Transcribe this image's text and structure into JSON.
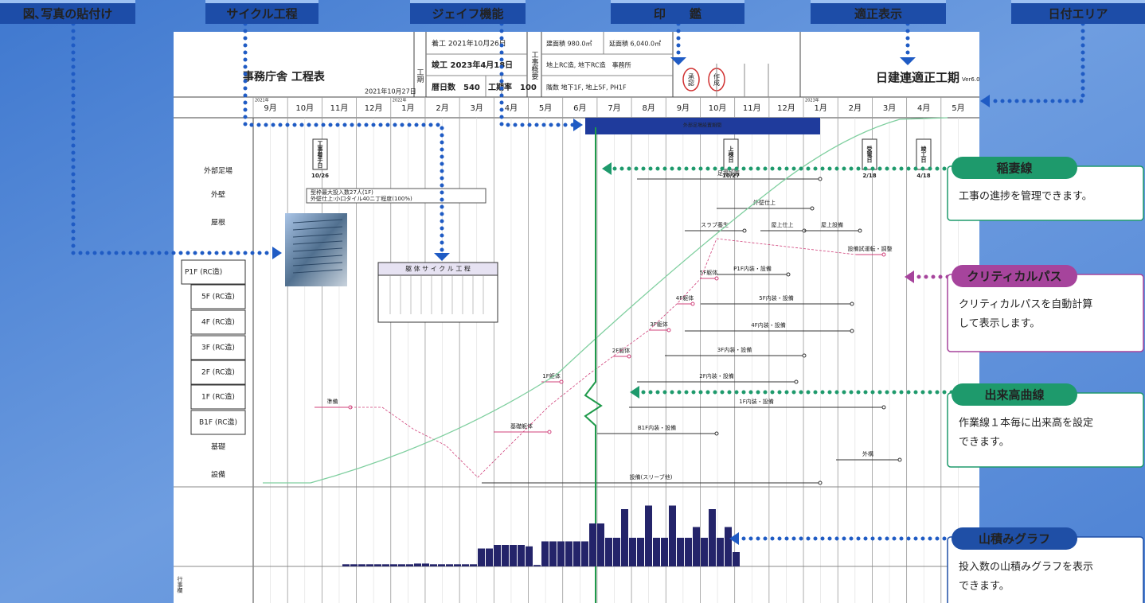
{
  "tabs": [
    "図､写真の貼付け",
    "サイクル工程",
    "ジェイフ機能",
    "印　　鑑",
    "適正表示",
    "日付エリア"
  ],
  "sheet": {
    "title": "事務庁舎 工程表",
    "issue_date": "2021年10月27日",
    "period_label": "工期",
    "start": "着工 2021年10月26日",
    "finish": "竣工 2023年4月18日",
    "days": "暦日数　540",
    "rate": "工期率　100",
    "outline_label": "工事概要",
    "info": [
      "建面積 980.0㎡",
      "延面積 6,040.0㎡",
      "地上RC造, 地下RC造　事務所",
      "階数 地下1F, 地上5F, PH1F"
    ],
    "stamps": [
      "承認",
      "作成"
    ],
    "tekisei": "日建連適正工期",
    "version": "Ver6.0",
    "years": [
      "2021年",
      "2022年",
      "2023年"
    ],
    "months": [
      "9月",
      "10月",
      "11月",
      "12月",
      "1月",
      "2月",
      "3月",
      "4月",
      "5月",
      "6月",
      "7月",
      "8月",
      "9月",
      "10月",
      "11月",
      "12月",
      "1月",
      "2月",
      "3月",
      "4月",
      "5月"
    ],
    "rows": [
      "外部足場",
      "外壁",
      "屋根",
      "P1F (RC造)",
      "5F (RC造)",
      "4F (RC造)",
      "3F (RC造)",
      "2F (RC造)",
      "1F (RC造)",
      "B1F (RC造)",
      "基礎",
      "設備"
    ],
    "band_label": "外部足場設置期間",
    "note": [
      "型枠最大投入数27人(1F)",
      "外壁仕上:小口タイル40ニ丁程度(100%)"
    ],
    "cycle_title": "躯 体 サ イ ク ル 工 程",
    "milestones": [
      {
        "name": "工事着手日",
        "date": "10/26"
      },
      {
        "name": "上棟日",
        "date": "10/27"
      },
      {
        "name": "受電日",
        "date": "2/18"
      },
      {
        "name": "竣工日",
        "date": "4/18"
      }
    ],
    "activities": [
      "足場設置",
      "外壁仕上",
      "屋上仕上",
      "屋上設備",
      "スラブ養生",
      "P1F内装・設備",
      "5F内装・設備",
      "4F内装・設備",
      "3F内装・設備",
      "2F内装・設備",
      "1F内装・設備",
      "B1F内装・設備",
      "準備",
      "基礎躯体",
      "1F躯体",
      "2F躯体",
      "3F躯体",
      "4F躯体",
      "5F躯体",
      "設備(スリーブ他)",
      "外構",
      "設備試運転・調整"
    ],
    "bottom_label": "行事欄"
  },
  "callouts": [
    {
      "title": "稲妻線",
      "color": "#1e9a6c",
      "text": [
        "工事の進捗を管理できます。"
      ]
    },
    {
      "title": "クリティカルパス",
      "color": "#a6449c",
      "text": [
        "クリティカルパスを自動計算",
        "して表示します。"
      ]
    },
    {
      "title": "出来高曲線",
      "color": "#1e9a6c",
      "text": [
        "作業線１本毎に出来高を設定",
        "できます。"
      ]
    },
    {
      "title": "山積みグラフ",
      "color": "#1f4fa6",
      "text": [
        "投入数の山積みグラフを表示",
        "できます。"
      ]
    }
  ],
  "histogram": {
    "color": "#24246a",
    "ylim": [
      0,
      100
    ],
    "values": [
      3,
      3,
      3,
      3,
      3,
      3,
      3,
      3,
      3,
      4,
      4,
      3,
      3,
      3,
      3,
      3,
      3,
      25,
      25,
      30,
      30,
      30,
      30,
      28,
      2,
      35,
      35,
      35,
      35,
      35,
      35,
      60,
      60,
      40,
      40,
      80,
      40,
      40,
      85,
      40,
      40,
      85,
      40,
      40,
      55,
      40,
      80,
      40,
      55,
      20
    ]
  }
}
